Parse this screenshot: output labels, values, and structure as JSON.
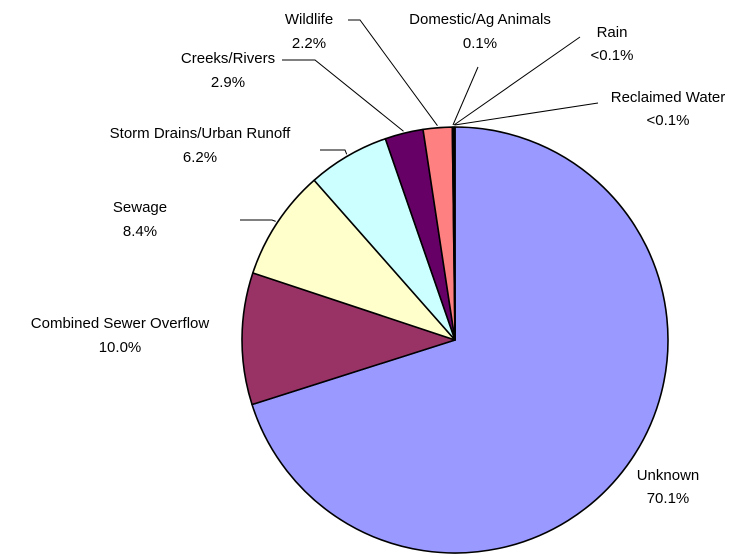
{
  "chart_data": {
    "type": "pie",
    "title": "",
    "legend": "none",
    "slices": [
      {
        "name": "Unknown",
        "value": 70.1,
        "value_label": "70.1%",
        "color": "#9999FF"
      },
      {
        "name": "Combined Sewer Overflow",
        "value": 10.0,
        "value_label": "10.0%",
        "color": "#993366"
      },
      {
        "name": "Sewage",
        "value": 8.4,
        "value_label": "8.4%",
        "color": "#FFFFCC"
      },
      {
        "name": "Storm Drains/Urban Runoff",
        "value": 6.2,
        "value_label": "6.2%",
        "color": "#CCFFFF"
      },
      {
        "name": "Creeks/Rivers",
        "value": 2.9,
        "value_label": "2.9%",
        "color": "#660066"
      },
      {
        "name": "Wildlife",
        "value": 2.2,
        "value_label": "2.2%",
        "color": "#FF8080"
      },
      {
        "name": "Domestic/Ag Animals",
        "value": 0.1,
        "value_label": "0.1%",
        "color": "#0066CC"
      },
      {
        "name": "Rain",
        "value": 0.05,
        "value_label": "<0.1%",
        "color": "#C0C0C0"
      },
      {
        "name": "Reclaimed Water",
        "value": 0.05,
        "value_label": "<0.1%",
        "color": "#008080"
      }
    ]
  }
}
